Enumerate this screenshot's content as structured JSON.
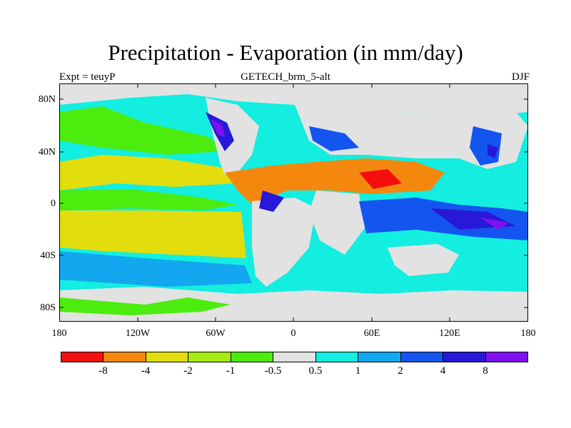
{
  "title": "Precipitation - Evaporation (in mm/day)",
  "left_label": "Expt = teuyP",
  "center_label": "GETECH_brm_5-alt",
  "right_label": "DJF",
  "y_ticks": [
    "80N",
    "40N",
    "0",
    "40S",
    "80S"
  ],
  "x_ticks": [
    "180",
    "120W",
    "60W",
    "0",
    "60E",
    "120E",
    "180"
  ],
  "colorbar": {
    "colors": [
      "#f40f0f",
      "#f4880f",
      "#e3dd0e",
      "#a6eb11",
      "#4cec0e",
      "#e2e2e2",
      "#13eee0",
      "#12a7ef",
      "#1455f0",
      "#2818d8",
      "#7d12ee"
    ],
    "labels": [
      "-8",
      "-4",
      "-2",
      "-1",
      "-0.5",
      "0.5",
      "1",
      "2",
      "4",
      "8"
    ]
  }
}
